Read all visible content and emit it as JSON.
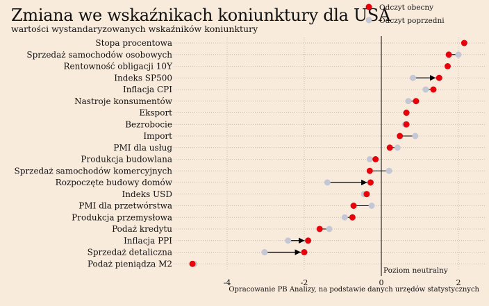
{
  "chart_data": {
    "type": "dot-arrow",
    "title": "Zmiana we wskaźnikach koniunktury dla USA",
    "subtitle": "wartości wystandaryzowanych wskaźników koniunktury",
    "source": "Opracowanie PB Analizy, na podstawie danych urzędów statystycznych",
    "xlim": [
      -5.1,
      2.4
    ],
    "x_ticks": [
      -4,
      -2,
      0,
      2
    ],
    "x_tick_labels": [
      "-4",
      "-2",
      "0",
      "2"
    ],
    "grid": true,
    "legend_position": "top-right",
    "series": [
      {
        "name": "Odczyt obecny",
        "color": "#e8000b"
      },
      {
        "name": "Odczyt poprzedni",
        "color": "#c4c7d4"
      }
    ],
    "reference_line": {
      "x": 0,
      "label": "Poziom neutralny"
    },
    "categories": [
      "Stopa procentowa",
      "Sprzedaż samochodów osobowych",
      "Rentowność obligacji 10Y",
      "Indeks SP500",
      "Inflacja CPI",
      "Nastroje konsumentów",
      "Eksport",
      "Bezrobocie",
      "Import",
      "PMI dla usług",
      "Produkcja budowlana",
      "Sprzedaż samochodów komercyjnych",
      "Rozpoczęte budowy domów",
      "Indeks USD",
      "PMI dla przetwórstwa",
      "Produkcja przemysłowa",
      "Podaż kredytu",
      "Inflacja PPI",
      "Sprzedaż detaliczna",
      "Podaż pieniądza M2"
    ],
    "current": [
      2.15,
      1.75,
      1.72,
      1.5,
      1.35,
      0.9,
      0.65,
      0.65,
      0.48,
      0.22,
      -0.15,
      -0.3,
      -0.28,
      -0.38,
      -0.72,
      -0.75,
      -1.6,
      -1.9,
      -2.0,
      -4.9
    ],
    "previous": [
      2.15,
      2.0,
      1.72,
      0.82,
      1.15,
      0.7,
      0.65,
      0.62,
      0.88,
      0.42,
      -0.3,
      0.2,
      -1.4,
      -0.45,
      -0.25,
      -0.95,
      -1.35,
      -2.42,
      -3.03,
      -4.85
    ],
    "big_change_arrows": [
      "Indeks SP500",
      "Rozpoczęte budowy domów",
      "Inflacja PPI",
      "Sprzedaż detaliczna"
    ]
  }
}
